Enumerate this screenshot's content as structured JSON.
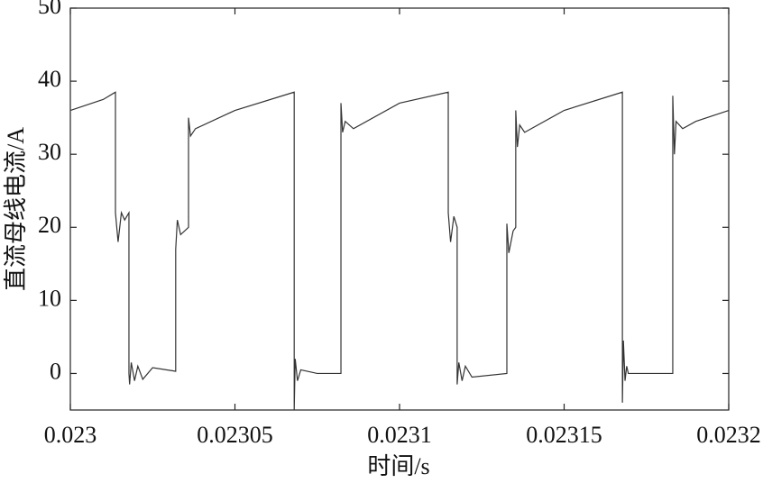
{
  "chart_data": {
    "type": "line",
    "x_label": "时间/s",
    "y_label": "直流母线电流/A",
    "x": [
      0.023,
      0.02301,
      0.0230137,
      0.0230137,
      0.0230145,
      0.0230155,
      0.0230165,
      0.0230178,
      0.0230178,
      0.023018,
      0.0230185,
      0.0230195,
      0.0230205,
      0.023022,
      0.023025,
      0.023032,
      0.023032,
      0.0230325,
      0.0230335,
      0.0230359,
      0.0230359,
      0.0230365,
      0.023038,
      0.02305,
      0.023068,
      0.023068,
      0.0230683,
      0.023069,
      0.02307,
      0.023075,
      0.0230822,
      0.0230822,
      0.0230827,
      0.0230835,
      0.023086,
      0.0231,
      0.0231148,
      0.0231148,
      0.0231155,
      0.0231165,
      0.0231175,
      0.0231175,
      0.023118,
      0.023119,
      0.02312,
      0.023122,
      0.0231326,
      0.0231326,
      0.0231332,
      0.0231345,
      0.0231353,
      0.0231353,
      0.0231358,
      0.0231365,
      0.023138,
      0.02315,
      0.0231677,
      0.0231677,
      0.023168,
      0.0231685,
      0.023169,
      0.0231695,
      0.023183,
      0.023183,
      0.0231835,
      0.023184,
      0.023186,
      0.02319,
      0.0232
    ],
    "values": [
      36,
      37.5,
      38.5,
      22,
      18,
      22,
      21,
      22,
      0,
      -1.5,
      1.5,
      -1,
      1,
      -0.8,
      0.8,
      0.3,
      17,
      21,
      19,
      20,
      35,
      32.5,
      33.5,
      36,
      38.5,
      -5,
      2,
      -1,
      0.5,
      0,
      0,
      37,
      33,
      34.5,
      33.5,
      37,
      38.5,
      22,
      18,
      21.5,
      20,
      -1.5,
      1.5,
      -1,
      1,
      -0.5,
      0,
      20.5,
      16.5,
      19.5,
      20,
      36,
      31,
      34,
      33,
      36,
      38.5,
      -4,
      4.5,
      -1,
      1,
      0,
      0,
      38,
      30,
      34.5,
      33.5,
      34.5,
      36
    ],
    "color": "#333333",
    "xlim": [
      0.023,
      0.0232
    ],
    "xticks": [
      0.023,
      0.02305,
      0.0231,
      0.02315,
      0.0232
    ],
    "ylim": [
      -5,
      50
    ],
    "yticks": [
      0,
      10,
      20,
      30,
      40,
      50
    ]
  }
}
